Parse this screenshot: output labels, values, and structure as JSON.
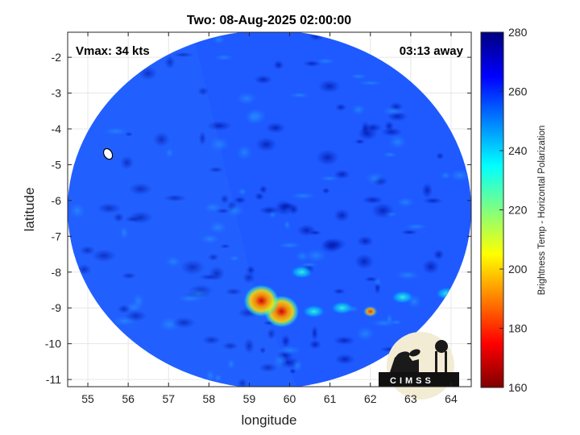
{
  "chart_data": {
    "type": "heatmap",
    "title": "Two: 08-Aug-2025 02:00:00",
    "xlabel": "longitude",
    "ylabel": "latitude",
    "xlim": [
      54.5,
      64.5
    ],
    "ylim": [
      -11.2,
      -1.3
    ],
    "xticks": [
      "55",
      "56",
      "57",
      "58",
      "59",
      "60",
      "61",
      "62",
      "63",
      "64"
    ],
    "yticks": [
      "-2",
      "-3",
      "-4",
      "-5",
      "-6",
      "-7",
      "-8",
      "-9",
      "-10",
      "-11"
    ],
    "grid": true,
    "annotations": {
      "vmax": "Vmax: 34 kts",
      "away": "03:13 away"
    },
    "colorbar": {
      "label": "Brightness Temp - Horizontal Polarization",
      "min": 160,
      "max": 280,
      "ticks": [
        "160",
        "180",
        "200",
        "220",
        "240",
        "260",
        "280"
      ],
      "colormap": [
        "#7f0000",
        "#ff0000",
        "#ff8000",
        "#ffff00",
        "#80ff80",
        "#00ffff",
        "#0080ff",
        "#0000ff",
        "#00007f"
      ]
    },
    "swath": {
      "center_lon": 59.5,
      "center_lat": -6.25,
      "radius_deg": 5.0,
      "background_value": 262
    },
    "features": [
      {
        "name": "warm core",
        "lon": 59.8,
        "lat": -9.1,
        "value": 192
      },
      {
        "name": "warm core secondary",
        "lon": 59.3,
        "lat": -8.8,
        "value": 200
      },
      {
        "name": "rainband",
        "lon": 60.6,
        "lat": -9.1,
        "value": 232
      },
      {
        "name": "rainband east",
        "lon": 61.3,
        "lat": -9.0,
        "value": 238
      },
      {
        "name": "rainband far east",
        "lon": 62.0,
        "lat": -9.1,
        "value": 210
      },
      {
        "name": "outer band",
        "lon": 62.8,
        "lat": -8.7,
        "value": 240
      },
      {
        "name": "spiral arm",
        "lon": 60.3,
        "lat": -8.0,
        "value": 242
      },
      {
        "name": "east spot",
        "lon": 63.9,
        "lat": -8.6,
        "value": 238
      },
      {
        "name": "west land spot",
        "lon": 55.5,
        "lat": -4.7,
        "value": 275
      }
    ]
  },
  "logo": {
    "text": "CIMSS"
  }
}
